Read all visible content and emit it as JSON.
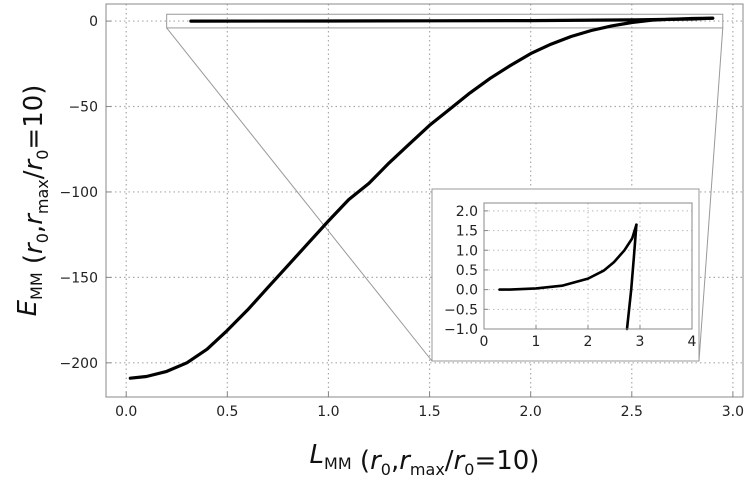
{
  "chart_data": {
    "type": "line",
    "main": {
      "xlabel": {
        "base": "L",
        "sub": "MM",
        "args": "(r0,rmax/r0=10)"
      },
      "ylabel": {
        "base": "E",
        "sub": "MM",
        "args": "(r0,rmax/r0=10)"
      },
      "xlim": [
        -0.1,
        3.05
      ],
      "ylim": [
        -220,
        10
      ],
      "xticks": [
        0.0,
        0.5,
        1.0,
        1.5,
        2.0,
        2.5,
        3.0
      ],
      "xtick_labels": [
        "0.0",
        "0.5",
        "1.0",
        "1.5",
        "2.0",
        "2.5",
        "3.0"
      ],
      "yticks": [
        0,
        -50,
        -100,
        -150,
        -200
      ],
      "ytick_labels": [
        "0",
        "−50",
        "−100",
        "−150",
        "−200"
      ],
      "grid": true,
      "grid_style": "dotted",
      "series": [
        {
          "color": "#000000",
          "x": [
            0.02,
            0.1,
            0.2,
            0.3,
            0.4,
            0.5,
            0.6,
            0.7,
            0.8,
            0.9,
            1.0,
            1.1,
            1.2,
            1.3,
            1.4,
            1.5,
            1.6,
            1.7,
            1.8,
            1.9,
            2.0,
            2.1,
            2.2,
            2.3,
            2.4,
            2.5,
            2.6,
            2.7,
            2.8,
            2.85,
            2.9
          ],
          "y": [
            -209,
            -208,
            -205,
            -200,
            -192,
            -181,
            -169,
            -156,
            -143,
            -130,
            -117,
            -104.5,
            -95,
            -83,
            -72,
            -61,
            -51.5,
            -42,
            -33.5,
            -26,
            -19,
            -13.5,
            -9,
            -5.5,
            -2.8,
            -0.8,
            0.5,
            1.1,
            1.5,
            1.6,
            1.7
          ]
        },
        {
          "color": "#000000",
          "x": [
            0.32,
            1.0,
            1.5,
            2.0,
            2.5,
            2.8,
            2.9
          ],
          "y": [
            0.0,
            0.05,
            0.15,
            0.3,
            0.7,
            1.2,
            1.7
          ]
        }
      ],
      "zoom_box": {
        "xlim": [
          0.2,
          2.95
        ],
        "ylim": [
          -4,
          4
        ]
      }
    },
    "inset": {
      "xlim": [
        0,
        4
      ],
      "ylim": [
        -1.0,
        2.2
      ],
      "xticks": [
        0,
        1,
        2,
        3,
        4
      ],
      "xtick_labels": [
        "0",
        "1",
        "2",
        "3",
        "4"
      ],
      "yticks": [
        2.0,
        1.5,
        1.0,
        0.5,
        0.0,
        -0.5,
        -1.0
      ],
      "ytick_labels": [
        "2.0",
        "1.5",
        "1.0",
        "0.5",
        "0.0",
        "−0.5",
        "−1.0"
      ],
      "grid": true,
      "series": [
        {
          "color": "#000000",
          "x": [
            0.3,
            0.5,
            1.0,
            1.5,
            2.0,
            2.3,
            2.5,
            2.7,
            2.85,
            2.93
          ],
          "y": [
            0.0,
            0.0,
            0.03,
            0.1,
            0.28,
            0.48,
            0.7,
            1.0,
            1.3,
            1.65
          ]
        },
        {
          "color": "#000000",
          "x": [
            2.93,
            2.88,
            2.83,
            2.79,
            2.75
          ],
          "y": [
            1.65,
            0.8,
            0.0,
            -0.5,
            -1.0
          ]
        }
      ]
    }
  }
}
